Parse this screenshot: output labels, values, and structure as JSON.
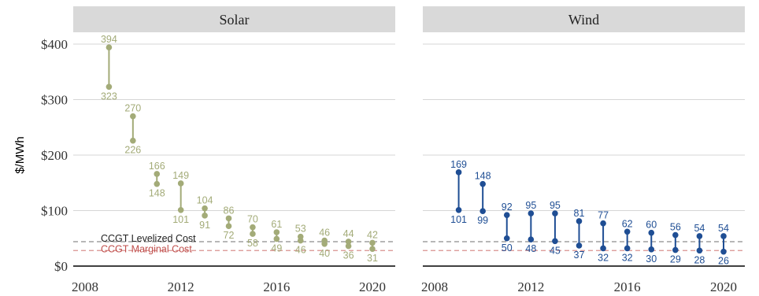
{
  "chart_data": {
    "type": "dumbbell",
    "ylabel": "$/MWh",
    "y_ticks": [
      "$0",
      "$100",
      "$200",
      "$300",
      "$400"
    ],
    "y_tick_values": [
      0,
      100,
      200,
      300,
      400
    ],
    "x_ticks": [
      "2008",
      "2012",
      "2016",
      "2020"
    ],
    "x_tick_values": [
      2008,
      2012,
      2016,
      2020
    ],
    "xlim": [
      2008,
      2020
    ],
    "ylim": [
      0,
      400
    ],
    "grid": "horizontal",
    "reference_lines": [
      {
        "label": "CCGT Levelized Cost",
        "value": 44,
        "color": "#8c8c8c"
      },
      {
        "label": "CCGT Marginal Cost",
        "value": 28,
        "color": "#d9908f"
      }
    ],
    "panels": [
      {
        "title": "Solar",
        "color": "#a3ab78",
        "years": [
          2009,
          2010,
          2011,
          2012,
          2013,
          2014,
          2015,
          2016,
          2017,
          2018,
          2019,
          2020
        ],
        "high": [
          394,
          270,
          166,
          149,
          104,
          86,
          70,
          61,
          53,
          46,
          44,
          42
        ],
        "low": [
          323,
          226,
          148,
          101,
          91,
          72,
          58,
          49,
          46,
          40,
          36,
          31
        ],
        "show_reference_labels": true
      },
      {
        "title": "Wind",
        "color": "#1f4e94",
        "years": [
          2009,
          2010,
          2011,
          2012,
          2013,
          2014,
          2015,
          2016,
          2017,
          2018,
          2019,
          2020
        ],
        "high": [
          169,
          148,
          92,
          95,
          95,
          81,
          77,
          62,
          60,
          56,
          54,
          54
        ],
        "low": [
          101,
          99,
          50,
          48,
          45,
          37,
          32,
          32,
          30,
          29,
          28,
          26
        ],
        "show_reference_labels": false
      }
    ]
  }
}
